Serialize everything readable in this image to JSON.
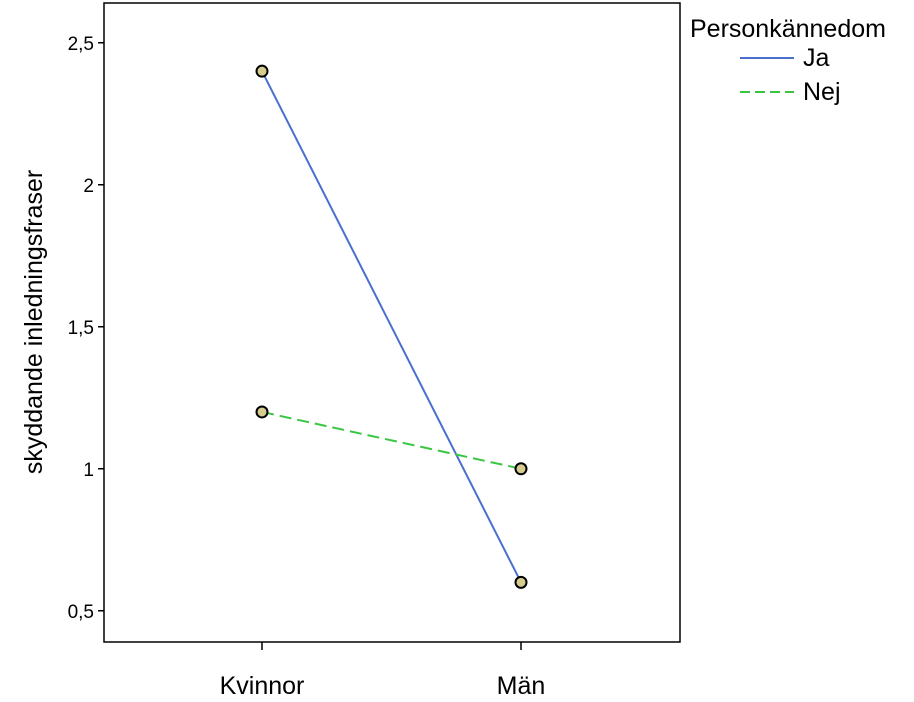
{
  "chart_data": {
    "type": "line",
    "title": "",
    "xlabel": "",
    "ylabel": "skyddande inledningsfraser",
    "categories": [
      "Kvinnor",
      "Män"
    ],
    "yticks": [
      "0,5",
      "1",
      "1,5",
      "2",
      "2,5"
    ],
    "ytick_values": [
      0.5,
      1,
      1.5,
      2,
      2.5
    ],
    "ylim": [
      0.39,
      2.64
    ],
    "grid": false,
    "legend": {
      "title": "Personkännedom",
      "position": "right"
    },
    "series": [
      {
        "name": "Ja",
        "values": [
          2.4,
          0.6
        ],
        "color": "#4a6fce",
        "dash": "solid"
      },
      {
        "name": "Nej",
        "values": [
          1.2,
          1.0
        ],
        "color": "#39c742",
        "dash": "dashed"
      }
    ],
    "marker_fill": "#d7cc8f",
    "marker_stroke": "#000000"
  }
}
